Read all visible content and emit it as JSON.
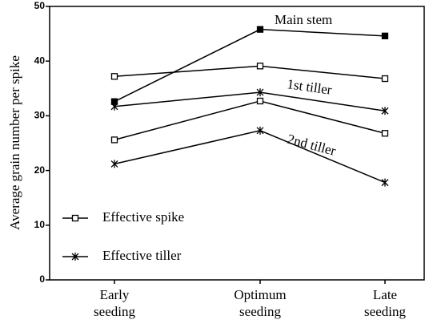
{
  "chart_data": {
    "type": "line",
    "ylabel": "Average grain number per spike",
    "categories": [
      [
        "Early",
        "seeding"
      ],
      [
        "Optimum",
        "seeding"
      ],
      [
        "Late",
        "seeding"
      ]
    ],
    "series": [
      {
        "marker": "square-filled",
        "color": "#000000",
        "values": [
          32.6,
          45.8,
          44.6
        ]
      },
      {
        "marker": "square-open",
        "color": "#000000",
        "values": [
          37.2,
          39.1,
          36.8
        ]
      },
      {
        "marker": "star",
        "color": "#000000",
        "values": [
          31.7,
          34.3,
          30.9
        ]
      },
      {
        "marker": "square-open",
        "color": "#000000",
        "values": [
          25.6,
          32.7,
          26.8
        ]
      },
      {
        "marker": "star",
        "color": "#000000",
        "values": [
          21.2,
          27.3,
          17.8
        ]
      }
    ],
    "legend": [
      {
        "name": "Effective spike",
        "marker": "square-open"
      },
      {
        "name": "Effective tiller",
        "marker": "star"
      }
    ],
    "annotations": [
      "Main stem",
      "1st tiller",
      "2nd tiller"
    ],
    "ylim": [
      0,
      50
    ],
    "yticks": [
      0,
      10,
      20,
      30,
      40,
      50
    ],
    "grid": false
  }
}
